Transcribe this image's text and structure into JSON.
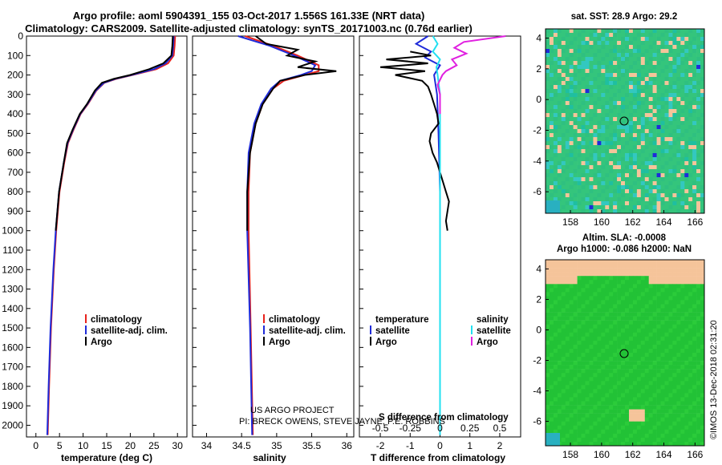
{
  "header": {
    "title_line1": "Argo profile: aoml 5904391_155 03-Oct-2017 1.556S 161.33E (NRT data)",
    "title_line2": "Climatology: CARS2009. Satellite-adjusted climatology: synTS_20171003.nc (0.76d earlier)"
  },
  "colors": {
    "climatology": "#e8221c",
    "satellite": "#1f2bd9",
    "argo": "#000000",
    "sat_salinity": "#22e0f0",
    "argo_salinity": "#e020e0",
    "map_bg": "#2fc080",
    "land": "#f5c49a"
  },
  "depth_axis": {
    "ticks": [
      "0",
      "100",
      "200",
      "300",
      "400",
      "500",
      "600",
      "700",
      "800",
      "900",
      "1000",
      "1100",
      "1200",
      "1300",
      "1400",
      "1500",
      "1600",
      "1700",
      "1800",
      "1900",
      "2000"
    ]
  },
  "chart_data": [
    {
      "type": "line",
      "name": "temperature",
      "xlabel": "temperature (deg C)",
      "xlim": [
        -2,
        32
      ],
      "ylim": [
        2060,
        0
      ],
      "xticks": [
        "0",
        "5",
        "10",
        "15",
        "20",
        "25",
        "30"
      ],
      "legend": [
        "climatology",
        "satellite-adj. clim.",
        "Argo"
      ],
      "series": [
        {
          "name": "climatology",
          "depth": [
            0,
            50,
            100,
            140,
            170,
            200,
            220,
            240,
            280,
            350,
            400,
            480,
            550,
            650,
            800,
            1000,
            1200,
            1500,
            1800,
            2050
          ],
          "values": [
            29.5,
            29.4,
            29.2,
            28.0,
            25.5,
            20.5,
            17.0,
            14.5,
            12.8,
            11.0,
            9.5,
            8.0,
            6.8,
            6.0,
            5.0,
            4.3,
            3.8,
            3.2,
            2.8,
            2.5
          ]
        },
        {
          "name": "satellite-adj. clim.",
          "depth": [
            0,
            50,
            100,
            140,
            170,
            200,
            220,
            240,
            280,
            350,
            400,
            480,
            550,
            650,
            800,
            1000,
            1200,
            1500,
            1800,
            2050
          ],
          "values": [
            29.2,
            29.1,
            28.9,
            27.5,
            25.0,
            20.3,
            16.8,
            14.4,
            12.7,
            10.9,
            9.4,
            7.9,
            6.7,
            5.9,
            4.9,
            4.2,
            3.7,
            3.1,
            2.7,
            2.4
          ]
        },
        {
          "name": "Argo",
          "depth": [
            0,
            50,
            100,
            140,
            170,
            200,
            220,
            240,
            280,
            350,
            400,
            480,
            550,
            650,
            800,
            1000
          ],
          "values": [
            29.0,
            28.9,
            28.7,
            27.0,
            24.0,
            20.0,
            16.5,
            14.0,
            12.5,
            10.8,
            9.3,
            7.8,
            6.6,
            5.9,
            4.9,
            4.2
          ]
        }
      ]
    },
    {
      "type": "line",
      "name": "salinity",
      "xlabel": "salinity",
      "xlim": [
        33.8,
        36.1
      ],
      "ylim": [
        2060,
        0
      ],
      "xticks": [
        "34",
        "34.5",
        "35",
        "35.5",
        "36"
      ],
      "legend": [
        "climatology",
        "satellite-adj. clim.",
        "Argo"
      ],
      "series": [
        {
          "name": "climatology",
          "depth": [
            0,
            50,
            100,
            150,
            180,
            200,
            230,
            270,
            350,
            450,
            600,
            800,
            1000,
            1500,
            2050
          ],
          "values": [
            34.55,
            34.95,
            35.3,
            35.6,
            35.6,
            35.4,
            35.1,
            34.95,
            34.8,
            34.7,
            34.62,
            34.6,
            34.6,
            34.63,
            34.66
          ]
        },
        {
          "name": "satellite-adj. clim.",
          "depth": [
            0,
            50,
            100,
            150,
            180,
            200,
            230,
            270,
            350,
            450,
            600,
            800,
            1000,
            1500,
            2050
          ],
          "values": [
            34.45,
            34.9,
            35.25,
            35.55,
            35.5,
            35.35,
            35.05,
            34.92,
            34.78,
            34.68,
            34.6,
            34.58,
            34.58,
            34.62,
            34.65
          ]
        },
        {
          "name": "Argo",
          "depth": [
            0,
            40,
            70,
            100,
            130,
            160,
            180,
            200,
            230,
            270,
            350,
            450,
            600,
            800,
            1000
          ],
          "values": [
            34.7,
            34.85,
            35.3,
            35.15,
            35.55,
            35.3,
            35.85,
            35.4,
            35.05,
            34.95,
            34.8,
            34.7,
            34.62,
            34.58,
            34.58
          ]
        }
      ]
    },
    {
      "type": "line",
      "name": "differences",
      "xlabel": "T difference from climatology",
      "xlabel_top": "S difference from climatology",
      "xlim": [
        -2.7,
        2.7
      ],
      "ylim": [
        2060,
        0
      ],
      "xticks": [
        "-2",
        "-1",
        "0",
        "1",
        "2"
      ],
      "xticks_top": [
        "-0.5",
        "-0.25",
        "0",
        "0.25",
        "0.5"
      ],
      "legend_left_title": "temperature",
      "legend_right_title": "salinity",
      "legend_left": [
        "satellite",
        "Argo"
      ],
      "legend_right": [
        "satellite",
        "Argo"
      ],
      "series": [
        {
          "name": "T satellite",
          "depth": [
            0,
            40,
            80,
            110,
            150,
            200,
            300,
            500,
            800,
            1200,
            1600,
            2050
          ],
          "values": [
            -0.4,
            -0.8,
            -0.3,
            -0.5,
            0.0,
            -0.2,
            -0.1,
            -0.05,
            0.0,
            0.0,
            0.0,
            0.0
          ]
        },
        {
          "name": "T Argo",
          "depth": [
            80,
            100,
            120,
            140,
            160,
            180,
            200,
            230,
            260,
            300,
            350,
            400,
            450,
            500,
            540,
            600,
            650,
            700,
            750,
            800,
            850,
            900,
            950,
            1000
          ],
          "values": [
            -1.0,
            -0.3,
            -1.8,
            -0.4,
            -2.0,
            -0.5,
            -1.5,
            -0.6,
            -0.4,
            -0.3,
            -0.2,
            -0.1,
            -0.05,
            -0.3,
            -0.35,
            -0.25,
            -0.1,
            0.0,
            0.1,
            0.2,
            0.3,
            0.25,
            0.2,
            0.25
          ]
        },
        {
          "name": "S satellite",
          "depth": [
            0,
            40,
            80,
            120,
            160,
            200,
            300,
            500,
            800,
            1200,
            1600,
            2050
          ],
          "values": [
            -0.06,
            -0.02,
            -0.06,
            0.0,
            -0.03,
            -0.02,
            0.0,
            0.0,
            0.0,
            0.0,
            0.0,
            0.0
          ]
        },
        {
          "name": "S Argo",
          "depth": [
            0,
            30,
            60,
            90,
            120,
            150,
            180,
            200,
            250,
            300,
            350,
            400
          ],
          "values": [
            0.55,
            0.2,
            0.12,
            0.22,
            0.1,
            0.14,
            0.05,
            0.02,
            -0.02,
            0.0,
            0.0,
            0.0
          ]
        }
      ]
    }
  ],
  "annotations": {
    "project_line1": "US ARGO PROJECT",
    "project_line2": "PI: BRECK OWENS, STEVE JAYNE, P.E. ROBBINS"
  },
  "sst_map": {
    "title": "sat. SST: 28.9 Argo: 29.2",
    "xticks": [
      "158",
      "160",
      "162",
      "164",
      "166"
    ],
    "yticks": [
      "4",
      "2",
      "0",
      "-2",
      "-4",
      "-6"
    ]
  },
  "sla_map": {
    "title_line1": "Altim. SLA: -0.0008",
    "title_line2": "Argo h1000: -0.086 h2000: NaN",
    "xticks": [
      "158",
      "160",
      "162",
      "164",
      "166"
    ],
    "yticks": [
      "4",
      "2",
      "0",
      "-2",
      "-4",
      "-6"
    ]
  },
  "footer": {
    "credit": "©IMOS 13-Dec-2018 02:31:20"
  }
}
